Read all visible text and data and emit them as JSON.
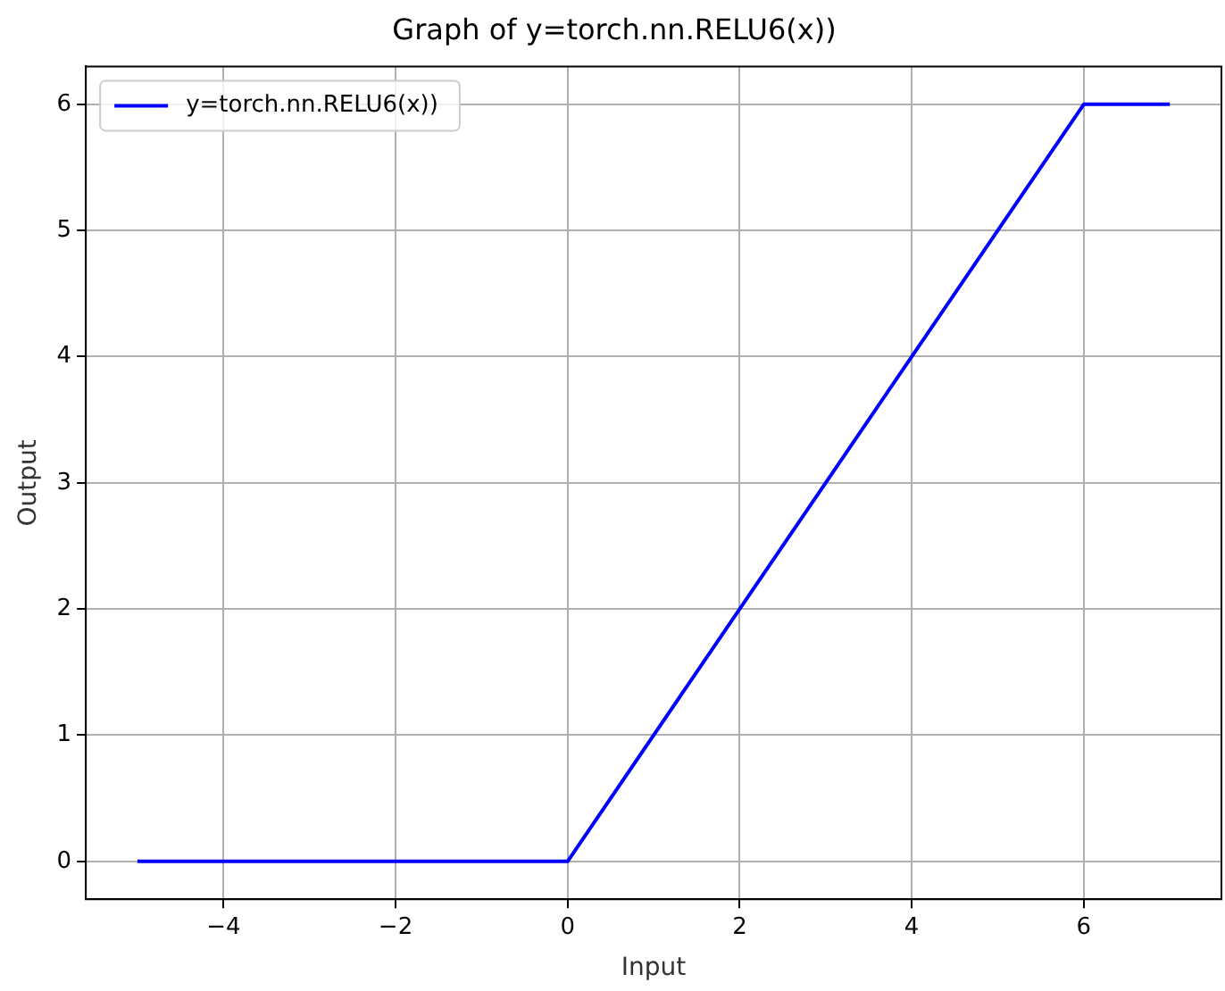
{
  "chart_data": {
    "type": "line",
    "title": "Graph of y=torch.nn.RELU6(x))",
    "xlabel": "Input",
    "ylabel": "Output",
    "x": [
      -5,
      0,
      6,
      7
    ],
    "series": [
      {
        "name": "y=torch.nn.RELU6(x))",
        "color": "#0000ff",
        "values": [
          0,
          0,
          6,
          6
        ]
      }
    ],
    "xlim": [
      -5.6,
      7.6
    ],
    "ylim": [
      -0.3,
      6.3
    ],
    "xticks": [
      -4,
      -2,
      0,
      2,
      4,
      6
    ],
    "yticks": [
      0,
      1,
      2,
      3,
      4,
      5,
      6
    ],
    "grid": true,
    "legend": "top left",
    "marker": "none",
    "line_style": "solid"
  }
}
